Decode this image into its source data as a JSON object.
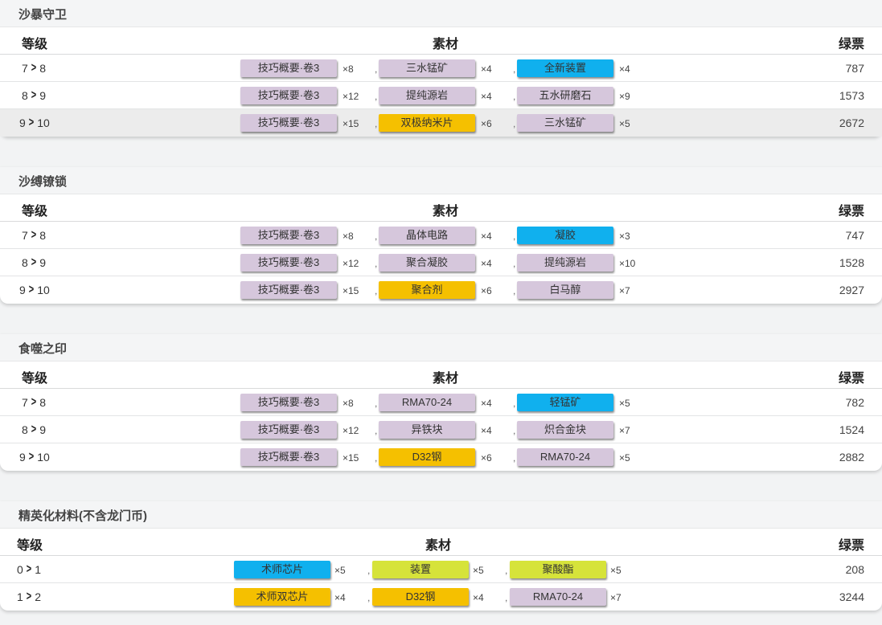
{
  "colors": {
    "t1": "#d6c7dc",
    "t4": "#10b0ee",
    "t5": "#f5c000",
    "t3": "#d6e33a"
  },
  "sections": [
    {
      "title": "沙暴守卫",
      "headers": {
        "level": "等级",
        "materials": "素材",
        "ticket": "绿票"
      },
      "rows": [
        {
          "from": "7",
          "to": "8",
          "ticket": "787",
          "highlight": false,
          "materials": [
            {
              "name": "技巧概要·卷3",
              "qty": "×8",
              "tier": "t1"
            },
            {
              "name": "三水锰矿",
              "qty": "×4",
              "tier": "t1"
            },
            {
              "name": "全新装置",
              "qty": "×4",
              "tier": "t4"
            }
          ]
        },
        {
          "from": "8",
          "to": "9",
          "ticket": "1573",
          "highlight": false,
          "materials": [
            {
              "name": "技巧概要·卷3",
              "qty": "×12",
              "tier": "t1"
            },
            {
              "name": "提纯源岩",
              "qty": "×4",
              "tier": "t1"
            },
            {
              "name": "五水研磨石",
              "qty": "×9",
              "tier": "t1"
            }
          ]
        },
        {
          "from": "9",
          "to": "10",
          "ticket": "2672",
          "highlight": true,
          "materials": [
            {
              "name": "技巧概要·卷3",
              "qty": "×15",
              "tier": "t1"
            },
            {
              "name": "双极纳米片",
              "qty": "×6",
              "tier": "t5"
            },
            {
              "name": "三水锰矿",
              "qty": "×5",
              "tier": "t1"
            }
          ]
        }
      ]
    },
    {
      "title": "沙缚镣锁",
      "headers": {
        "level": "等级",
        "materials": "素材",
        "ticket": "绿票"
      },
      "rows": [
        {
          "from": "7",
          "to": "8",
          "ticket": "747",
          "highlight": false,
          "materials": [
            {
              "name": "技巧概要·卷3",
              "qty": "×8",
              "tier": "t1"
            },
            {
              "name": "晶体电路",
              "qty": "×4",
              "tier": "t1"
            },
            {
              "name": "凝胶",
              "qty": "×3",
              "tier": "t4"
            }
          ]
        },
        {
          "from": "8",
          "to": "9",
          "ticket": "1528",
          "highlight": false,
          "materials": [
            {
              "name": "技巧概要·卷3",
              "qty": "×12",
              "tier": "t1"
            },
            {
              "name": "聚合凝胶",
              "qty": "×4",
              "tier": "t1"
            },
            {
              "name": "提纯源岩",
              "qty": "×10",
              "tier": "t1"
            }
          ]
        },
        {
          "from": "9",
          "to": "10",
          "ticket": "2927",
          "highlight": false,
          "materials": [
            {
              "name": "技巧概要·卷3",
              "qty": "×15",
              "tier": "t1"
            },
            {
              "name": "聚合剂",
              "qty": "×6",
              "tier": "t5"
            },
            {
              "name": "白马醇",
              "qty": "×7",
              "tier": "t1"
            }
          ]
        }
      ]
    },
    {
      "title": "食噬之印",
      "headers": {
        "level": "等级",
        "materials": "素材",
        "ticket": "绿票"
      },
      "rows": [
        {
          "from": "7",
          "to": "8",
          "ticket": "782",
          "highlight": false,
          "materials": [
            {
              "name": "技巧概要·卷3",
              "qty": "×8",
              "tier": "t1"
            },
            {
              "name": "RMA70-24",
              "qty": "×4",
              "tier": "t1"
            },
            {
              "name": "轻锰矿",
              "qty": "×5",
              "tier": "t4"
            }
          ]
        },
        {
          "from": "8",
          "to": "9",
          "ticket": "1524",
          "highlight": false,
          "materials": [
            {
              "name": "技巧概要·卷3",
              "qty": "×12",
              "tier": "t1"
            },
            {
              "name": "异铁块",
              "qty": "×4",
              "tier": "t1"
            },
            {
              "name": "炽合金块",
              "qty": "×7",
              "tier": "t1"
            }
          ]
        },
        {
          "from": "9",
          "to": "10",
          "ticket": "2882",
          "highlight": false,
          "materials": [
            {
              "name": "技巧概要·卷3",
              "qty": "×15",
              "tier": "t1"
            },
            {
              "name": "D32钢",
              "qty": "×6",
              "tier": "t5"
            },
            {
              "name": "RMA70-24",
              "qty": "×5",
              "tier": "t1"
            }
          ]
        }
      ]
    },
    {
      "title": "精英化材料(不含龙门币)",
      "headers": {
        "level": "等级",
        "materials": "素材",
        "ticket": "绿票"
      },
      "rows": [
        {
          "from": "0",
          "to": "1",
          "ticket": "208",
          "highlight": false,
          "materials": [
            {
              "name": "术师芯片",
              "qty": "×5",
              "tier": "t4"
            },
            {
              "name": "装置",
              "qty": "×5",
              "tier": "t3"
            },
            {
              "name": "聚酸酯",
              "qty": "×5",
              "tier": "t3"
            }
          ]
        },
        {
          "from": "1",
          "to": "2",
          "ticket": "3244",
          "highlight": false,
          "materials": [
            {
              "name": "术师双芯片",
              "qty": "×4",
              "tier": "t5"
            },
            {
              "name": "D32钢",
              "qty": "×4",
              "tier": "t5"
            },
            {
              "name": "RMA70-24",
              "qty": "×7",
              "tier": "t1"
            }
          ]
        }
      ]
    }
  ],
  "separator": ","
}
